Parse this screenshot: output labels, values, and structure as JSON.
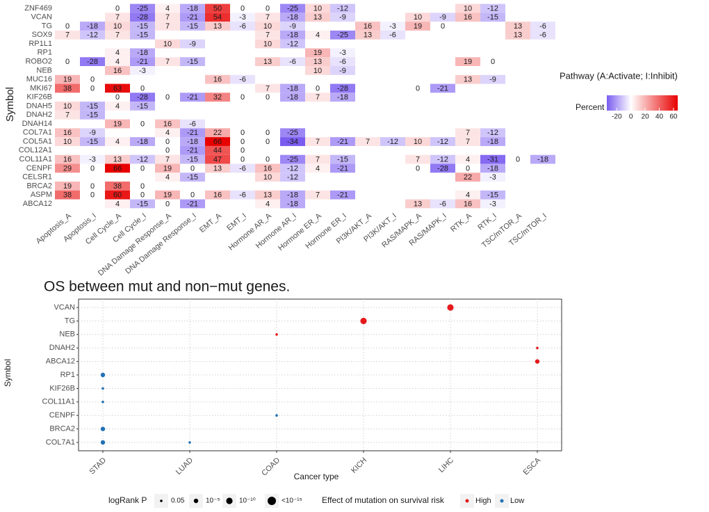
{
  "chart_data": [
    {
      "type": "heatmap",
      "y_label": "Symbol",
      "legend_title": "Pathway (A:Activate; I:Inhibit)",
      "colorbar_label": "Percent",
      "colorbar_lim": [
        -34,
        66
      ],
      "colorbar_ticks": [
        -20,
        0,
        20,
        40,
        60
      ],
      "colors": {
        "low": "#7a5cf0",
        "mid": "#ffffff",
        "high": "#e80000"
      },
      "rows": [
        "ZNF469",
        "VCAN",
        "TG",
        "SOX9",
        "RP1L1",
        "RP1",
        "ROBO2",
        "NEB",
        "MUC16",
        "MKI67",
        "KIF26B",
        "DNAH5",
        "DNAH2",
        "DNAH14",
        "COL7A1",
        "COL5A1",
        "COL12A1",
        "COL11A1",
        "CENPF",
        "CELSR1",
        "BRCA2",
        "ASPM",
        "ABCA12"
      ],
      "columns": [
        "Apoptosis_A",
        "Apoptosis_I",
        "Cell Cycle_A",
        "Cell Cycle_I",
        "DNA Damage Response_A",
        "DNA Damage Response_I",
        "EMT_A",
        "EMT_I",
        "Hormone AR_A",
        "Hormone AR_I",
        "Hormone ER_A",
        "Hormone ER_I",
        "PI3K/AKT_A",
        "PI3K/AKT_I",
        "RAS/MAPK_A",
        "RAS/MAPK_I",
        "RTK_A",
        "RTK_I",
        "TSC/mTOR_A",
        "TSC/mTOR_I"
      ],
      "values": [
        [
          null,
          null,
          0,
          -25,
          4,
          -18,
          50,
          0,
          0,
          -25,
          10,
          -12,
          null,
          null,
          null,
          null,
          10,
          -12,
          null,
          null
        ],
        [
          null,
          null,
          7,
          -28,
          7,
          -21,
          54,
          -3,
          7,
          -18,
          13,
          -9,
          null,
          null,
          10,
          -9,
          16,
          -15,
          null,
          null
        ],
        [
          0,
          -18,
          10,
          -15,
          7,
          -15,
          13,
          -6,
          10,
          -9,
          null,
          null,
          16,
          -3,
          19,
          0,
          null,
          null,
          13,
          -6
        ],
        [
          7,
          -12,
          7,
          -15,
          null,
          null,
          null,
          null,
          7,
          -18,
          4,
          -25,
          13,
          -6,
          null,
          null,
          null,
          null,
          13,
          -6
        ],
        [
          null,
          null,
          null,
          null,
          10,
          -9,
          null,
          null,
          10,
          -12,
          null,
          null,
          null,
          null,
          null,
          null,
          null,
          null,
          null,
          null
        ],
        [
          null,
          null,
          4,
          -18,
          null,
          null,
          null,
          null,
          null,
          null,
          19,
          -3,
          null,
          null,
          null,
          null,
          null,
          null,
          null,
          null
        ],
        [
          0,
          -28,
          4,
          -21,
          7,
          -15,
          null,
          null,
          13,
          -6,
          13,
          -6,
          null,
          null,
          null,
          null,
          19,
          0,
          null,
          null
        ],
        [
          null,
          null,
          16,
          -3,
          null,
          null,
          null,
          null,
          null,
          null,
          10,
          -9,
          null,
          null,
          null,
          null,
          null,
          null,
          null,
          null
        ],
        [
          19,
          0,
          null,
          null,
          null,
          null,
          16,
          -6,
          null,
          null,
          null,
          null,
          null,
          null,
          null,
          null,
          13,
          -9,
          null,
          null
        ],
        [
          38,
          0,
          63,
          0,
          null,
          null,
          null,
          null,
          7,
          -18,
          0,
          -28,
          null,
          null,
          0,
          -21,
          null,
          null,
          null,
          null
        ],
        [
          null,
          null,
          0,
          -28,
          0,
          -21,
          32,
          0,
          0,
          -18,
          7,
          -18,
          null,
          null,
          null,
          null,
          null,
          null,
          null,
          null
        ],
        [
          10,
          -15,
          4,
          -15,
          null,
          null,
          null,
          null,
          null,
          null,
          null,
          null,
          null,
          null,
          null,
          null,
          null,
          null,
          null,
          null
        ],
        [
          7,
          -15,
          null,
          null,
          null,
          null,
          null,
          null,
          null,
          null,
          null,
          null,
          null,
          null,
          null,
          null,
          null,
          null,
          null,
          null
        ],
        [
          null,
          null,
          19,
          0,
          16,
          -6,
          null,
          null,
          null,
          null,
          null,
          null,
          null,
          null,
          null,
          null,
          null,
          null,
          null,
          null
        ],
        [
          16,
          -9,
          null,
          null,
          4,
          -21,
          22,
          0,
          0,
          -25,
          null,
          null,
          null,
          null,
          null,
          null,
          7,
          -12,
          null,
          null
        ],
        [
          10,
          -15,
          4,
          -18,
          0,
          -18,
          66,
          0,
          0,
          -34,
          7,
          -21,
          7,
          -12,
          10,
          -12,
          7,
          -18,
          null,
          null
        ],
        [
          null,
          null,
          null,
          null,
          0,
          -21,
          44,
          0,
          null,
          null,
          null,
          null,
          null,
          null,
          null,
          null,
          null,
          null,
          null,
          null
        ],
        [
          16,
          -3,
          13,
          -12,
          7,
          -15,
          47,
          0,
          0,
          -25,
          7,
          -15,
          null,
          null,
          7,
          -12,
          4,
          -31,
          0,
          -18
        ],
        [
          29,
          0,
          66,
          0,
          19,
          0,
          13,
          -6,
          16,
          -12,
          4,
          -21,
          null,
          null,
          0,
          -28,
          0,
          -18,
          null,
          null
        ],
        [
          null,
          null,
          null,
          null,
          4,
          -15,
          null,
          null,
          10,
          -12,
          null,
          null,
          null,
          null,
          null,
          null,
          22,
          -3,
          null,
          null
        ],
        [
          19,
          0,
          38,
          0,
          null,
          null,
          null,
          null,
          null,
          null,
          null,
          null,
          null,
          null,
          null,
          null,
          null,
          null,
          null,
          null
        ],
        [
          38,
          0,
          60,
          0,
          19,
          0,
          16,
          -6,
          13,
          -18,
          7,
          -21,
          null,
          null,
          null,
          null,
          4,
          -15,
          null,
          null
        ],
        [
          null,
          null,
          4,
          -15,
          0,
          -21,
          null,
          null,
          4,
          -18,
          null,
          null,
          null,
          null,
          13,
          -6,
          16,
          -3,
          null,
          null
        ]
      ]
    },
    {
      "type": "dot",
      "title": "OS between mut and non−mut genes.",
      "x_label": "Cancer type",
      "y_label": "Symbol",
      "x_categories": [
        "STAD",
        "LUAD",
        "COAD",
        "KICH",
        "LIHC",
        "ESCA"
      ],
      "y_categories": [
        "VCAN",
        "TG",
        "NEB",
        "DNAH2",
        "ABCA12",
        "RP1",
        "KIF26B",
        "COL11A1",
        "CENPF",
        "BRCA2",
        "COL7A1"
      ],
      "size_legend": {
        "title": "logRank P",
        "labels": [
          "0.05",
          "10⁻⁵",
          "10⁻¹⁰",
          "<10⁻¹⁵"
        ]
      },
      "color_legend_title": "Effect of mutation on survival risk",
      "grid": true,
      "series": [
        {
          "name": "High",
          "color": "#e41a1c",
          "points": [
            {
              "x": "LIHC",
              "y": "VCAN",
              "p": "10⁻¹⁰"
            },
            {
              "x": "KICH",
              "y": "TG",
              "p": "10⁻¹⁰"
            },
            {
              "x": "COAD",
              "y": "NEB",
              "p": "0.05"
            },
            {
              "x": "ESCA",
              "y": "DNAH2",
              "p": "0.05"
            },
            {
              "x": "ESCA",
              "y": "ABCA12",
              "p": "10⁻⁵"
            }
          ]
        },
        {
          "name": "Low",
          "color": "#2171b5",
          "points": [
            {
              "x": "STAD",
              "y": "RP1",
              "p": "10⁻⁵"
            },
            {
              "x": "STAD",
              "y": "KIF26B",
              "p": "0.05"
            },
            {
              "x": "STAD",
              "y": "COL11A1",
              "p": "0.05"
            },
            {
              "x": "COAD",
              "y": "CENPF",
              "p": "0.05"
            },
            {
              "x": "STAD",
              "y": "BRCA2",
              "p": "10⁻⁵"
            },
            {
              "x": "STAD",
              "y": "COL7A1",
              "p": "10⁻⁵"
            },
            {
              "x": "LUAD",
              "y": "COL7A1",
              "p": "0.05"
            }
          ]
        }
      ]
    }
  ]
}
